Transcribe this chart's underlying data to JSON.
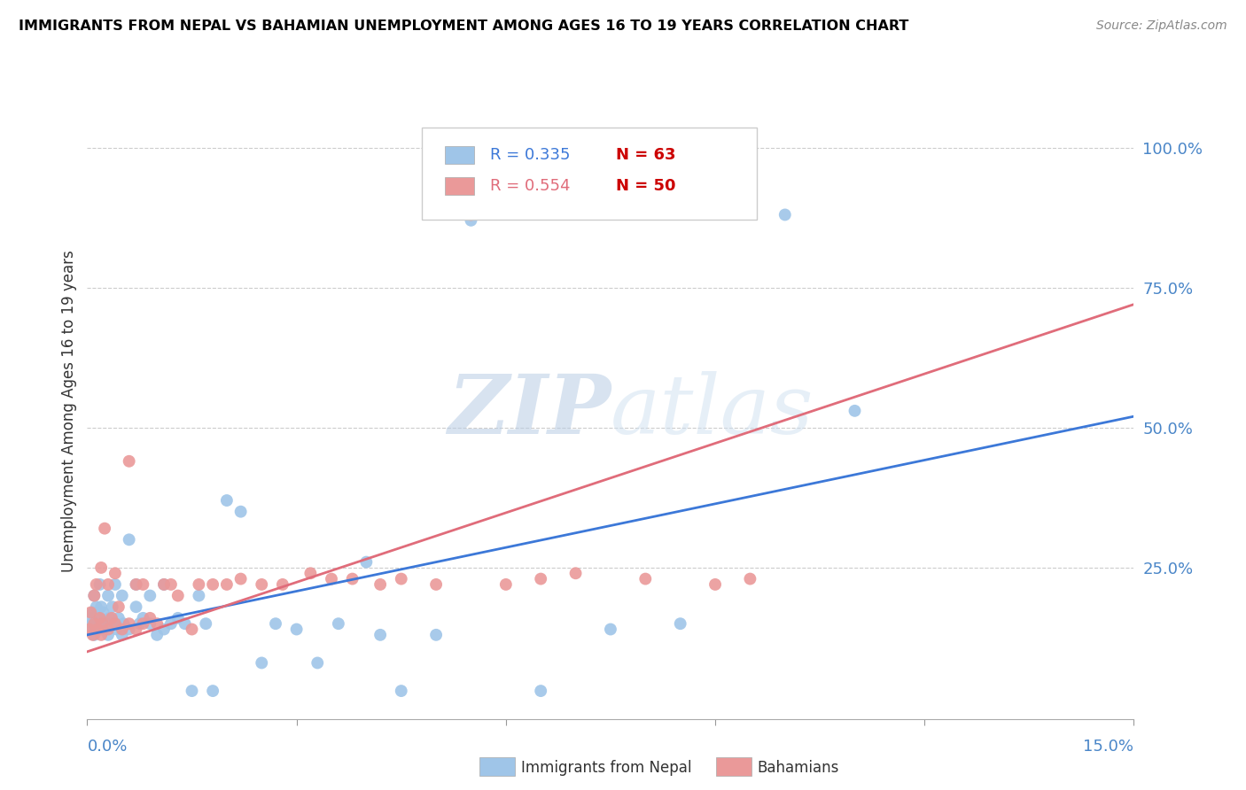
{
  "title": "IMMIGRANTS FROM NEPAL VS BAHAMIAN UNEMPLOYMENT AMONG AGES 16 TO 19 YEARS CORRELATION CHART",
  "source": "Source: ZipAtlas.com",
  "ylabel": "Unemployment Among Ages 16 to 19 years",
  "xlim": [
    0.0,
    0.15
  ],
  "ylim": [
    -0.02,
    1.08
  ],
  "legend_r1": "R = 0.335",
  "legend_n1": "N = 63",
  "legend_r2": "R = 0.554",
  "legend_n2": "N = 50",
  "blue_color": "#9fc5e8",
  "pink_color": "#ea9999",
  "blue_line_color": "#3c78d8",
  "pink_line_color": "#e06c7a",
  "text_color": "#4a86c8",
  "background_color": "#ffffff",
  "grid_color": "#cccccc",
  "watermark_zip_color": "#b8cce4",
  "watermark_atlas_color": "#d0e0f0",
  "nepal_line_x0": 0.0,
  "nepal_line_x1": 0.15,
  "nepal_line_y0": 0.13,
  "nepal_line_y1": 0.52,
  "bahamian_line_x0": 0.0,
  "bahamian_line_x1": 0.15,
  "bahamian_line_y0": 0.1,
  "bahamian_line_y1": 0.72,
  "yticks": [
    0.0,
    0.25,
    0.5,
    0.75,
    1.0
  ],
  "ytick_labels": [
    "",
    "25.0%",
    "50.0%",
    "75.0%",
    "100.0%"
  ],
  "nepal_x": [
    0.0003,
    0.0005,
    0.0007,
    0.0008,
    0.001,
    0.001,
    0.0012,
    0.0013,
    0.0015,
    0.0016,
    0.0018,
    0.002,
    0.002,
    0.0022,
    0.0023,
    0.0025,
    0.003,
    0.003,
    0.0032,
    0.0034,
    0.0036,
    0.004,
    0.004,
    0.0042,
    0.0045,
    0.005,
    0.005,
    0.0052,
    0.006,
    0.006,
    0.007,
    0.007,
    0.0075,
    0.008,
    0.009,
    0.009,
    0.01,
    0.011,
    0.011,
    0.012,
    0.013,
    0.014,
    0.015,
    0.016,
    0.017,
    0.018,
    0.02,
    0.022,
    0.025,
    0.027,
    0.03,
    0.033,
    0.036,
    0.04,
    0.042,
    0.045,
    0.05,
    0.055,
    0.065,
    0.075,
    0.085,
    0.1,
    0.11
  ],
  "nepal_y": [
    0.14,
    0.16,
    0.15,
    0.17,
    0.13,
    0.2,
    0.15,
    0.18,
    0.14,
    0.16,
    0.22,
    0.14,
    0.18,
    0.15,
    0.17,
    0.15,
    0.13,
    0.2,
    0.16,
    0.15,
    0.18,
    0.15,
    0.22,
    0.14,
    0.16,
    0.13,
    0.2,
    0.15,
    0.14,
    0.3,
    0.18,
    0.22,
    0.15,
    0.16,
    0.15,
    0.2,
    0.13,
    0.14,
    0.22,
    0.15,
    0.16,
    0.15,
    0.03,
    0.2,
    0.15,
    0.03,
    0.37,
    0.35,
    0.08,
    0.15,
    0.14,
    0.08,
    0.15,
    0.26,
    0.13,
    0.03,
    0.13,
    0.87,
    0.03,
    0.14,
    0.15,
    0.88,
    0.53
  ],
  "bahamian_x": [
    0.0003,
    0.0005,
    0.0008,
    0.001,
    0.001,
    0.0013,
    0.0015,
    0.0018,
    0.002,
    0.002,
    0.0022,
    0.0025,
    0.003,
    0.003,
    0.0035,
    0.004,
    0.004,
    0.0045,
    0.005,
    0.006,
    0.006,
    0.007,
    0.007,
    0.008,
    0.008,
    0.009,
    0.01,
    0.011,
    0.012,
    0.013,
    0.015,
    0.016,
    0.018,
    0.02,
    0.022,
    0.025,
    0.028,
    0.032,
    0.035,
    0.038,
    0.042,
    0.045,
    0.05,
    0.055,
    0.06,
    0.065,
    0.07,
    0.08,
    0.09,
    0.095
  ],
  "bahamian_y": [
    0.14,
    0.17,
    0.13,
    0.2,
    0.15,
    0.22,
    0.14,
    0.16,
    0.13,
    0.25,
    0.15,
    0.32,
    0.14,
    0.22,
    0.16,
    0.15,
    0.24,
    0.18,
    0.14,
    0.15,
    0.44,
    0.14,
    0.22,
    0.15,
    0.22,
    0.16,
    0.15,
    0.22,
    0.22,
    0.2,
    0.14,
    0.22,
    0.22,
    0.22,
    0.23,
    0.22,
    0.22,
    0.24,
    0.23,
    0.23,
    0.22,
    0.23,
    0.22,
    0.88,
    0.22,
    0.23,
    0.24,
    0.23,
    0.22,
    0.23
  ]
}
